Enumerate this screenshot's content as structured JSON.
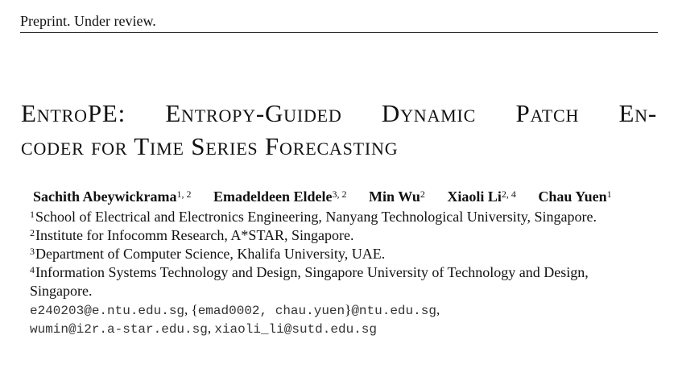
{
  "header": {
    "text": "Preprint. Under review."
  },
  "title": {
    "line1": "EntroPE: Entropy-Guided Dynamic Patch En-",
    "line2": "coder for Time Series Forecasting"
  },
  "authors": [
    {
      "name": "Sachith Abeywickrama",
      "affil": "1, 2"
    },
    {
      "name": "Emadeldeen Eldele",
      "affil": "3, 2"
    },
    {
      "name": "Min Wu",
      "affil": "2"
    },
    {
      "name": "Xiaoli Li",
      "affil": "2, 4"
    },
    {
      "name": "Chau Yuen",
      "affil": "1"
    }
  ],
  "affiliations": [
    {
      "num": "1",
      "text": "School of Electrical and Electronics Engineering, Nanyang Technological University, Singapore."
    },
    {
      "num": "2",
      "text": "Institute for Infocomm Research, A*STAR, Singapore."
    },
    {
      "num": "3",
      "text": "Department of Computer Science, Khalifa University, UAE."
    },
    {
      "num": "4",
      "text": "Information Systems Technology and Design, Singapore University of Technology and Design,"
    }
  ],
  "affiliation_continuation": "Singapore.",
  "emails": {
    "line1_a": "e240203@e.ntu.edu.sg",
    "line1_sep1": ", {",
    "line1_b": "emad0002, chau.yuen",
    "line1_sep2": "}",
    "line1_c": "@ntu.edu.sg",
    "line1_end": ",",
    "line2_a": "wumin@i2r.a-star.edu.sg",
    "line2_sep": ", ",
    "line2_b": "xiaoli_li@sutd.edu.sg"
  }
}
